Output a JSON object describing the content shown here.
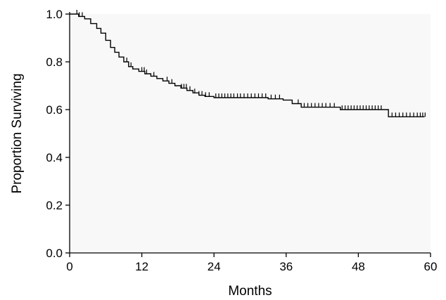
{
  "chart_data": {
    "type": "line",
    "title": "",
    "xlabel": "Months",
    "ylabel": "Proportion Surviving",
    "xlim": [
      0,
      60
    ],
    "ylim": [
      0.0,
      1.0
    ],
    "x_ticks": [
      0,
      12,
      24,
      36,
      48,
      60
    ],
    "x_tick_labels": [
      "0",
      "12",
      "24",
      "36",
      "48",
      "60"
    ],
    "y_ticks": [
      0.0,
      0.2,
      0.4,
      0.6,
      0.8,
      1.0
    ],
    "y_tick_labels": [
      "0.0",
      "0.2",
      "0.4",
      "0.6",
      "0.8",
      "1.0"
    ],
    "grid": false,
    "background_color": "#f8f8f8",
    "line_color": "#000000",
    "series": [
      {
        "step": true,
        "x": [
          0,
          1.5,
          2.5,
          3.5,
          4.5,
          5.2,
          6.0,
          6.8,
          7.5,
          8.2,
          9.0,
          9.8,
          10.5,
          11.5,
          12.5,
          13.5,
          14.5,
          15.5,
          16.5,
          17.5,
          18.5,
          19.5,
          20.5,
          21.5,
          22.5,
          24.0,
          30.0,
          33.0,
          35.5,
          37.0,
          38.5,
          43.0,
          45.0,
          52.5,
          53.0,
          59.0
        ],
        "y": [
          1.0,
          0.99,
          0.98,
          0.96,
          0.94,
          0.92,
          0.89,
          0.86,
          0.84,
          0.82,
          0.8,
          0.78,
          0.77,
          0.76,
          0.75,
          0.74,
          0.73,
          0.72,
          0.71,
          0.7,
          0.69,
          0.68,
          0.67,
          0.66,
          0.655,
          0.65,
          0.65,
          0.645,
          0.64,
          0.625,
          0.61,
          0.61,
          0.6,
          0.6,
          0.57,
          0.57
        ]
      }
    ],
    "censor_x": [
      1.2,
      1.6,
      2.1,
      9.5,
      10.2,
      12.0,
      12.4,
      12.8,
      14.0,
      16.2,
      17.0,
      18.6,
      19.0,
      19.4,
      20.0,
      20.8,
      21.5,
      22.0,
      22.6,
      23.2,
      24.3,
      24.8,
      25.3,
      25.8,
      26.3,
      26.8,
      27.3,
      27.9,
      28.4,
      29.0,
      29.6,
      30.2,
      30.8,
      31.4,
      32.0,
      32.6,
      33.5,
      34.2,
      34.9,
      38.0,
      39.0,
      39.6,
      40.2,
      40.8,
      41.4,
      42.0,
      42.6,
      43.3,
      44.0,
      45.3,
      45.8,
      46.3,
      46.8,
      47.3,
      47.8,
      48.3,
      48.8,
      49.3,
      49.8,
      50.3,
      50.8,
      51.3,
      51.8,
      53.6,
      54.2,
      54.8,
      55.4,
      56.0,
      56.6,
      57.2,
      57.8,
      58.3,
      58.7,
      59.1
    ]
  }
}
